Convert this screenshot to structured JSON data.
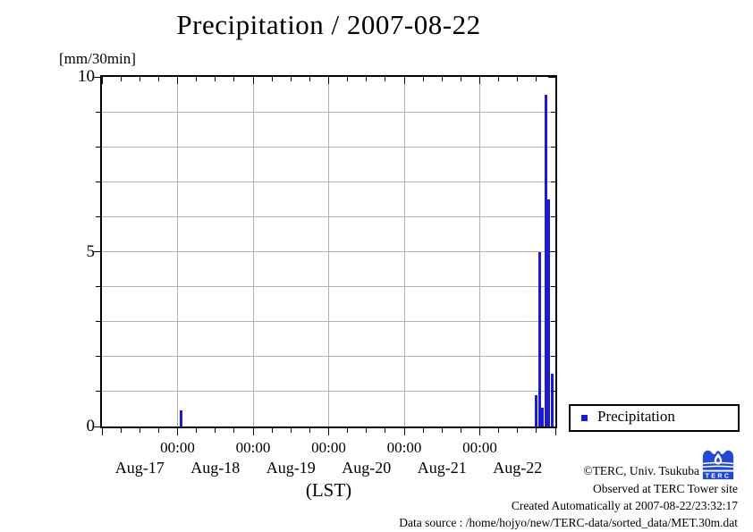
{
  "title": "Precipitation / 2007-08-22",
  "y_axis": {
    "unit_label": "[mm/30min]",
    "tick_labels": [
      {
        "value": 10,
        "label": "10"
      },
      {
        "value": 5,
        "label": "5"
      },
      {
        "value": 0,
        "label": "0"
      }
    ]
  },
  "x_axis": {
    "axis_label": "(LST)",
    "midnight_labels": [
      "00:00",
      "00:00",
      "00:00",
      "00:00",
      "00:00"
    ],
    "day_labels": [
      "Aug-17",
      "Aug-18",
      "Aug-19",
      "Aug-20",
      "Aug-21",
      "Aug-22"
    ]
  },
  "legend": {
    "label": "Precipitation"
  },
  "footer": {
    "copyright": "©TERC, Univ. Tsukuba",
    "observed": "Observed at TERC Tower site",
    "created": "Created Automatically at 2007-08-22/23:32:17",
    "datasource": "Data source : /home/hojyo/new/TERC-data/sorted_data/MET.30m.dat",
    "logo_text": "TERC"
  },
  "colors": {
    "bar": "#1b1bd4",
    "grid": "#b2b2b2",
    "frame": "#000000",
    "logo_blue": "#2448d2"
  },
  "chart_data": {
    "type": "bar",
    "title": "Precipitation / 2007-08-22",
    "ylabel": "[mm/30min]",
    "xlabel": "(LST)",
    "ylim": [
      0,
      10
    ],
    "yticks_labeled": [
      0,
      5,
      10
    ],
    "ygrid_interval": 1,
    "x_start": "2007-08-17 00:00",
    "x_end": "2007-08-23 00:00",
    "x_days": 6,
    "x_minor_tick_hours": 6,
    "x_major_tick_hours": 24,
    "bin_minutes": 30,
    "grid": true,
    "legend_position": "bottom-right",
    "series": [
      {
        "name": "Precipitation",
        "unit": "mm/30min",
        "points": [
          {
            "time": "2007-08-18 01:00",
            "value": 0.45,
            "day_offset": 1.042
          },
          {
            "time": "2007-08-22 18:00",
            "value": 0.9,
            "day_offset": 5.75
          },
          {
            "time": "2007-08-22 19:00",
            "value": 5.0,
            "day_offset": 5.792
          },
          {
            "time": "2007-08-22 20:00",
            "value": 0.55,
            "day_offset": 5.833
          },
          {
            "time": "2007-08-22 21:00",
            "value": 9.5,
            "day_offset": 5.875
          },
          {
            "time": "2007-08-22 22:00",
            "value": 6.5,
            "day_offset": 5.917
          },
          {
            "time": "2007-08-22 23:00",
            "value": 1.5,
            "day_offset": 5.958
          }
        ]
      }
    ]
  }
}
